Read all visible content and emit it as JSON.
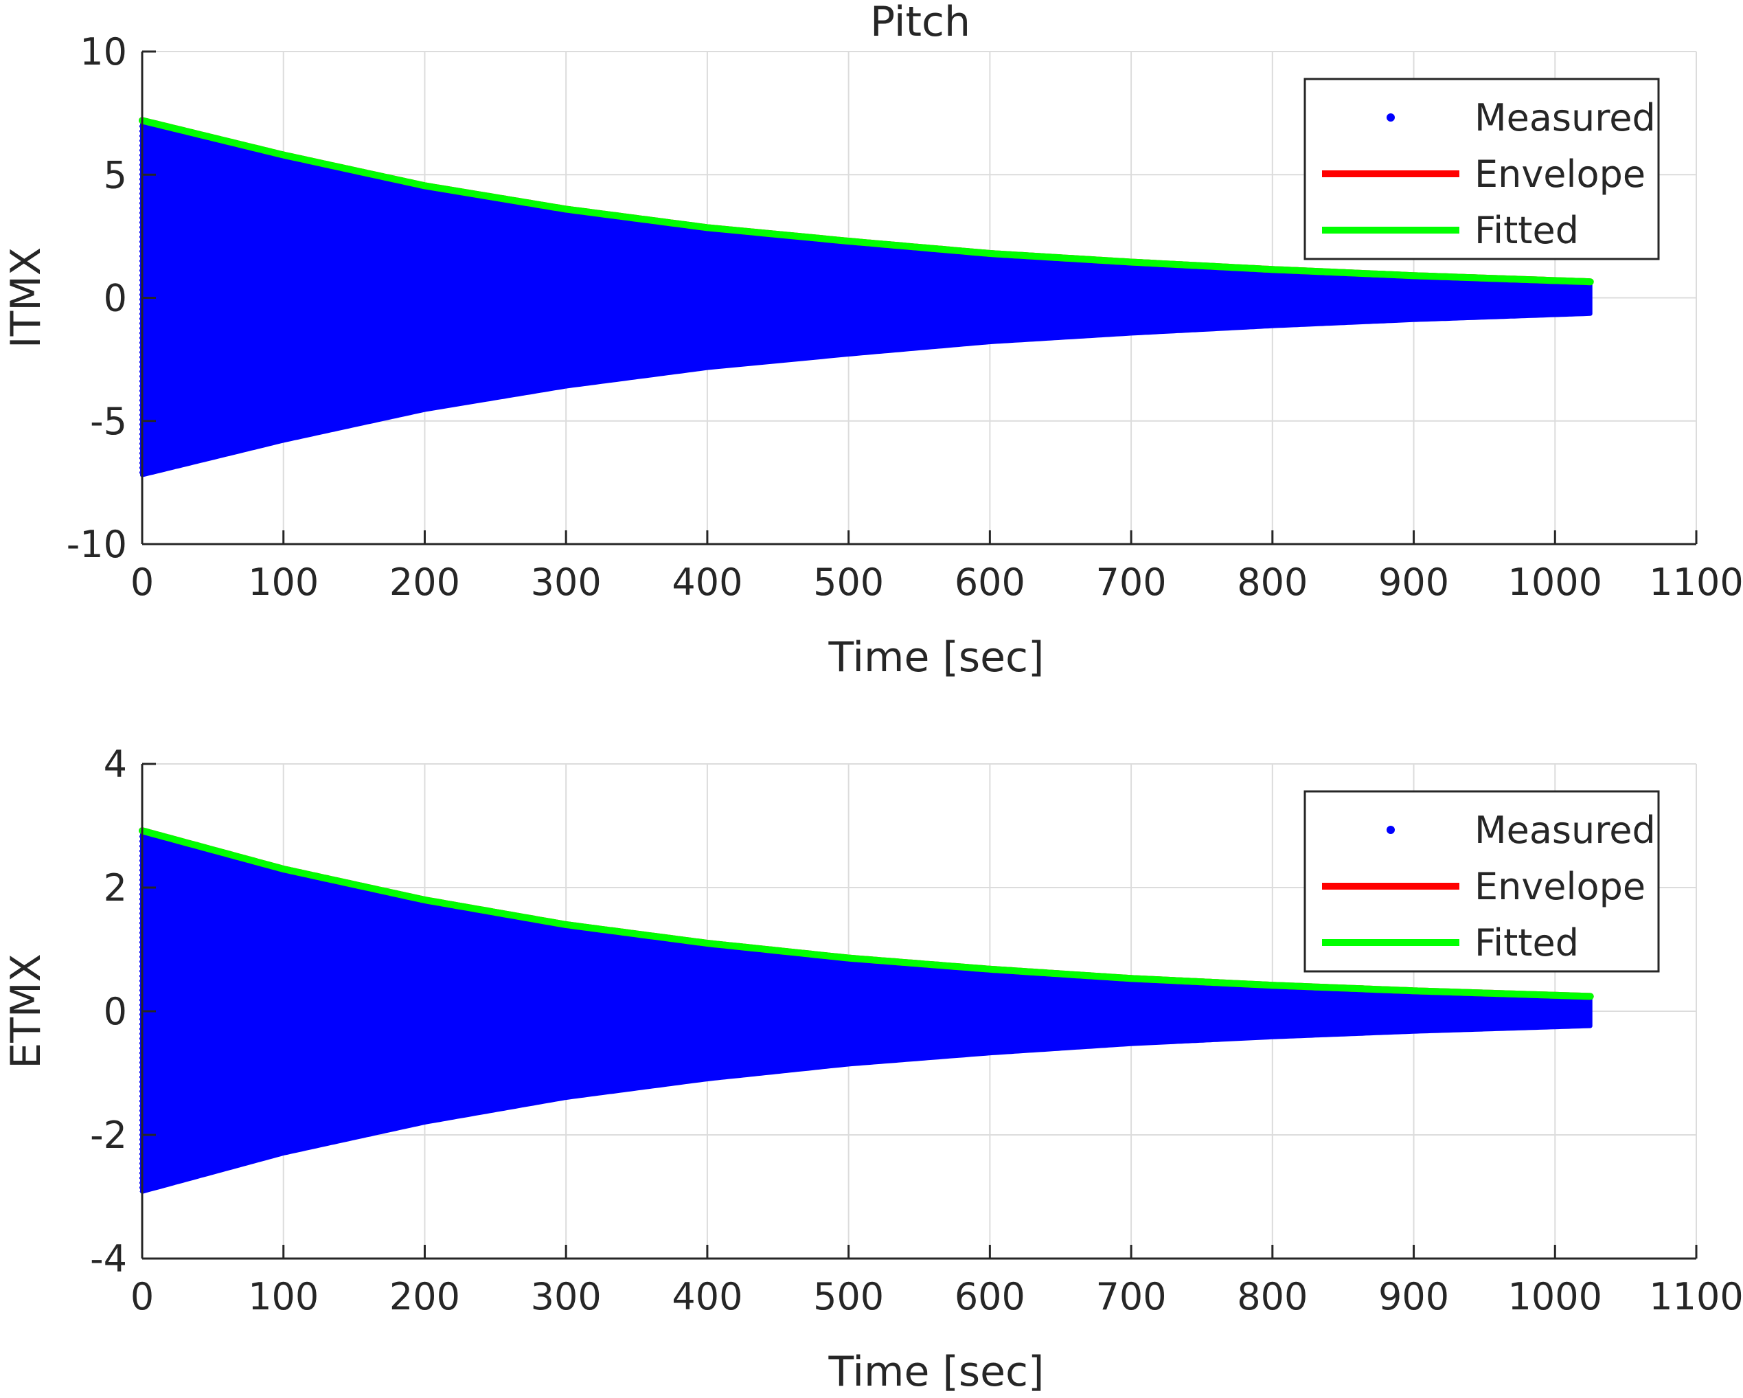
{
  "figure_title": "Pitch",
  "chart_data": [
    {
      "type": "line",
      "title": "Pitch",
      "xlabel": "Time [sec]",
      "ylabel": "ITMX",
      "xlim": [
        0,
        1100
      ],
      "ylim": [
        -10,
        10
      ],
      "xticks": [
        0,
        100,
        200,
        300,
        400,
        500,
        600,
        700,
        800,
        900,
        1000,
        1100
      ],
      "yticks": [
        -10,
        -5,
        0,
        5,
        10
      ],
      "grid": true,
      "legend_position": "top-right",
      "legend": [
        {
          "label": "Measured",
          "marker": "dot",
          "color": "#0000ff"
        },
        {
          "label": "Envelope",
          "marker": "line",
          "color": "#ff0000"
        },
        {
          "label": "Fitted",
          "marker": "line",
          "color": "#00ff00"
        }
      ],
      "series": [
        {
          "name": "Measured",
          "style": "oscillating-band",
          "color": "#0000ff",
          "x": [
            0,
            100,
            200,
            300,
            400,
            500,
            600,
            700,
            800,
            900,
            1025
          ],
          "amplitude": [
            7.2,
            5.8,
            4.55,
            3.6,
            2.85,
            2.3,
            1.8,
            1.45,
            1.15,
            0.9,
            0.65
          ]
        },
        {
          "name": "Envelope",
          "color": "#ff0000",
          "x": [
            0,
            100,
            200,
            300,
            400,
            500,
            600,
            700,
            800,
            900,
            1025
          ],
          "values": [
            7.2,
            5.8,
            4.55,
            3.6,
            2.85,
            2.3,
            1.8,
            1.45,
            1.15,
            0.9,
            0.65
          ]
        },
        {
          "name": "Fitted",
          "color": "#00ff00",
          "x": [
            0,
            100,
            200,
            300,
            400,
            500,
            600,
            700,
            800,
            900,
            1025
          ],
          "values": [
            7.2,
            5.8,
            4.55,
            3.6,
            2.85,
            2.3,
            1.8,
            1.45,
            1.15,
            0.9,
            0.65
          ]
        }
      ]
    },
    {
      "type": "line",
      "title": "",
      "xlabel": "Time [sec]",
      "ylabel": "ETMX",
      "xlim": [
        0,
        1100
      ],
      "ylim": [
        -4,
        4
      ],
      "xticks": [
        0,
        100,
        200,
        300,
        400,
        500,
        600,
        700,
        800,
        900,
        1000,
        1100
      ],
      "yticks": [
        -4,
        -2,
        0,
        2,
        4
      ],
      "grid": true,
      "legend_position": "top-right",
      "legend": [
        {
          "label": "Measured",
          "marker": "dot",
          "color": "#0000ff"
        },
        {
          "label": "Envelope",
          "marker": "line",
          "color": "#ff0000"
        },
        {
          "label": "Fitted",
          "marker": "line",
          "color": "#00ff00"
        }
      ],
      "series": [
        {
          "name": "Measured",
          "style": "oscillating-band",
          "color": "#0000ff",
          "x": [
            0,
            100,
            200,
            300,
            400,
            500,
            600,
            700,
            800,
            900,
            1025
          ],
          "amplitude": [
            2.92,
            2.3,
            1.8,
            1.4,
            1.1,
            0.86,
            0.68,
            0.53,
            0.42,
            0.33,
            0.24
          ]
        },
        {
          "name": "Envelope",
          "color": "#ff0000",
          "x": [
            0,
            100,
            200,
            300,
            400,
            500,
            600,
            700,
            800,
            900,
            1025
          ],
          "values": [
            2.92,
            2.3,
            1.8,
            1.4,
            1.1,
            0.86,
            0.68,
            0.53,
            0.42,
            0.33,
            0.24
          ]
        },
        {
          "name": "Fitted",
          "color": "#00ff00",
          "x": [
            0,
            100,
            200,
            300,
            400,
            500,
            600,
            700,
            800,
            900,
            1025
          ],
          "values": [
            2.92,
            2.3,
            1.8,
            1.4,
            1.1,
            0.86,
            0.68,
            0.53,
            0.42,
            0.33,
            0.24
          ]
        }
      ]
    }
  ]
}
